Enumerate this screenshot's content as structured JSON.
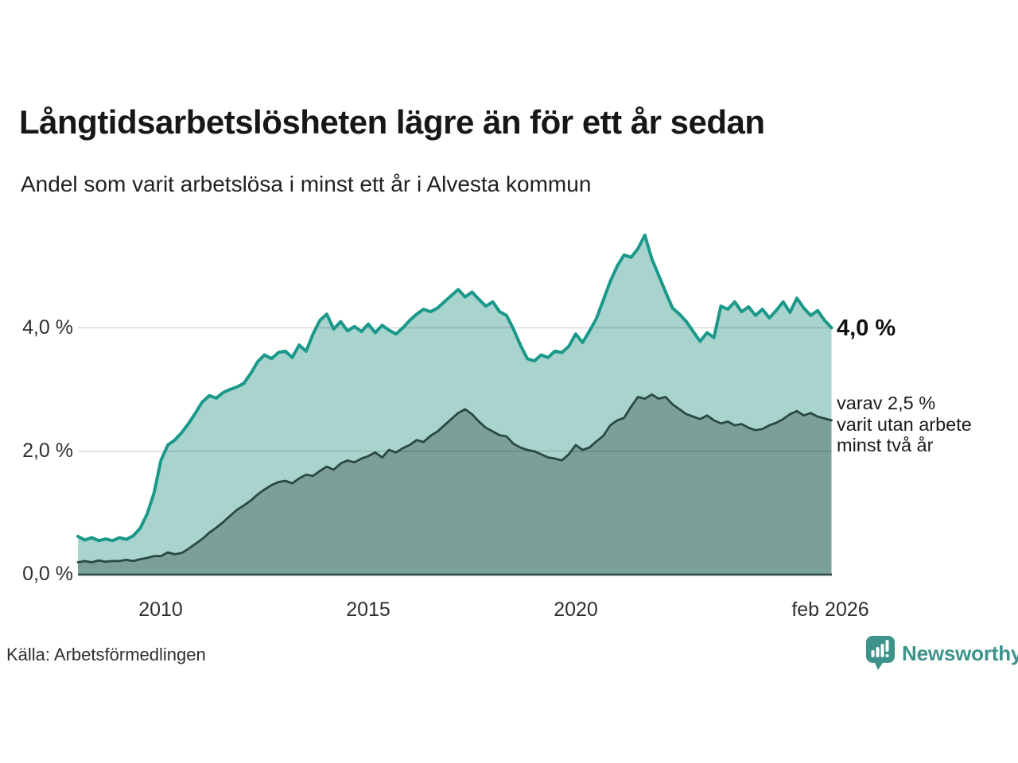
{
  "title": "Långtidsarbetslösheten lägre än för ett år sedan",
  "subtitle": "Andel som varit arbetslösa i minst ett år i Alvesta kommun",
  "source": "Källa: Arbetsförmedlingen",
  "brand": {
    "name": "Newsworthy",
    "color": "#3d938b",
    "icon": "speech-bubble-bar-chart"
  },
  "annotations": {
    "latest_total": "4,0 %",
    "two_year_note_lines": [
      "varav 2,5 %",
      "varit utan arbete",
      "minst två år"
    ]
  },
  "chart_data": {
    "type": "area",
    "title": "Långtidsarbetslösheten lägre än för ett år sedan",
    "subtitle": "Andel som varit arbetslösa i minst ett år i Alvesta kommun",
    "x_start_year": 2008.0,
    "x_step_years": 0.1667,
    "x_end_label": "feb 2026",
    "ylim": [
      0,
      5.85
    ],
    "grid": "horizontal",
    "x_ticks": [
      {
        "label": "2010",
        "year": 2010
      },
      {
        "label": "2015",
        "year": 2015
      },
      {
        "label": "2020",
        "year": 2020
      },
      {
        "label": "feb 2026",
        "year": 2026.083
      }
    ],
    "y_ticks": [
      {
        "label": "4,0 %",
        "value": 4.0
      },
      {
        "label": "2,0 %",
        "value": 2.0
      },
      {
        "label": "0,0 %",
        "value": 0.0
      }
    ],
    "series": [
      {
        "name": "Andel arbetslösa minst ett år",
        "latest_value": 4.0,
        "line_color": "#1a998a",
        "fill_color": "#a9d4cd",
        "line_width": 4,
        "values": [
          0.62,
          0.56,
          0.6,
          0.55,
          0.58,
          0.55,
          0.6,
          0.57,
          0.63,
          0.75,
          0.98,
          1.32,
          1.85,
          2.1,
          2.18,
          2.3,
          2.45,
          2.62,
          2.8,
          2.9,
          2.86,
          2.95,
          3.0,
          3.04,
          3.1,
          3.26,
          3.45,
          3.56,
          3.5,
          3.6,
          3.62,
          3.52,
          3.72,
          3.62,
          3.9,
          4.12,
          4.22,
          3.98,
          4.1,
          3.95,
          4.02,
          3.94,
          4.06,
          3.92,
          4.04,
          3.96,
          3.9,
          4.0,
          4.12,
          4.22,
          4.3,
          4.26,
          4.32,
          4.42,
          4.52,
          4.62,
          4.5,
          4.58,
          4.46,
          4.35,
          4.42,
          4.26,
          4.2,
          3.98,
          3.72,
          3.5,
          3.46,
          3.56,
          3.52,
          3.62,
          3.6,
          3.7,
          3.9,
          3.76,
          3.95,
          4.15,
          4.45,
          4.75,
          5.0,
          5.18,
          5.14,
          5.28,
          5.5,
          5.12,
          4.85,
          4.58,
          4.32,
          4.22,
          4.1,
          3.94,
          3.78,
          3.92,
          3.84,
          4.35,
          4.3,
          4.42,
          4.26,
          4.34,
          4.2,
          4.3,
          4.16,
          4.28,
          4.42,
          4.25,
          4.48,
          4.32,
          4.2,
          4.28,
          4.12,
          4.0
        ]
      },
      {
        "name": "varav utan arbete minst två år",
        "latest_value": 2.5,
        "line_color": "#2b4944",
        "fill_color": "#7aa099",
        "line_width": 2.8,
        "values": [
          0.2,
          0.22,
          0.2,
          0.23,
          0.21,
          0.22,
          0.22,
          0.24,
          0.22,
          0.25,
          0.27,
          0.3,
          0.3,
          0.36,
          0.33,
          0.35,
          0.42,
          0.5,
          0.58,
          0.68,
          0.76,
          0.85,
          0.95,
          1.05,
          1.12,
          1.2,
          1.3,
          1.38,
          1.45,
          1.5,
          1.52,
          1.48,
          1.56,
          1.62,
          1.6,
          1.68,
          1.75,
          1.7,
          1.8,
          1.85,
          1.82,
          1.88,
          1.92,
          1.98,
          1.9,
          2.02,
          1.98,
          2.05,
          2.1,
          2.18,
          2.15,
          2.25,
          2.32,
          2.42,
          2.52,
          2.62,
          2.68,
          2.6,
          2.48,
          2.38,
          2.32,
          2.26,
          2.24,
          2.12,
          2.06,
          2.02,
          2.0,
          1.95,
          1.9,
          1.88,
          1.85,
          1.95,
          2.1,
          2.02,
          2.06,
          2.16,
          2.25,
          2.42,
          2.5,
          2.54,
          2.72,
          2.88,
          2.85,
          2.92,
          2.85,
          2.88,
          2.76,
          2.68,
          2.6,
          2.56,
          2.52,
          2.58,
          2.5,
          2.45,
          2.48,
          2.42,
          2.44,
          2.38,
          2.34,
          2.36,
          2.42,
          2.46,
          2.52,
          2.6,
          2.65,
          2.58,
          2.62,
          2.56,
          2.53,
          2.5
        ]
      }
    ]
  }
}
